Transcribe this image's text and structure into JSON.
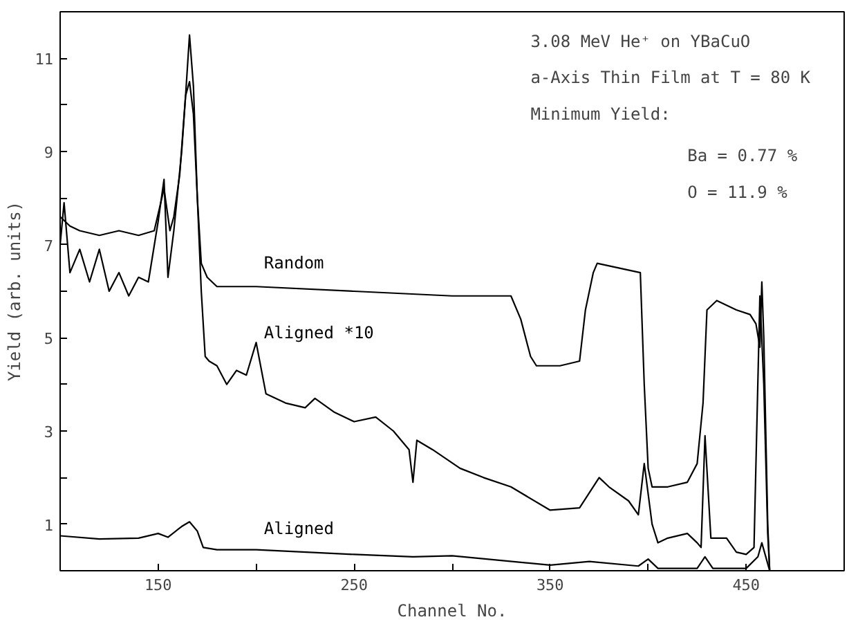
{
  "chart_data": {
    "type": "line",
    "xlabel": "Channel No.",
    "ylabel": "Yield (arb. units)",
    "annotations": [
      "3.08 MeV He⁺ on YBaCuO",
      "a-Axis Thin Film at T = 80 K",
      "Minimum Yield:",
      "Ba = 0.77 %",
      "O  = 11.9 %"
    ],
    "xlim": [
      100,
      500
    ],
    "ylim": [
      0,
      12
    ],
    "xticks": [
      {
        "value": 100,
        "label": null
      },
      150,
      {
        "value": 200,
        "label": null
      },
      250,
      {
        "value": 300,
        "label": null
      },
      350,
      {
        "value": 400,
        "label": null
      },
      450,
      {
        "value": 500,
        "label": null
      }
    ],
    "yticks": [
      1,
      {
        "value": 2,
        "label": null
      },
      3,
      {
        "value": 4,
        "label": null
      },
      5,
      {
        "value": 6,
        "label": null
      },
      7,
      {
        "value": 8,
        "label": null
      },
      9,
      {
        "value": 10,
        "label": null
      },
      11
    ],
    "grid": false,
    "marker": "none",
    "line_style": "solid",
    "series": [
      {
        "name": "Random",
        "color": "#000000",
        "x": [
          100,
          105,
          110,
          120,
          130,
          140,
          148,
          153,
          156,
          158,
          161,
          164,
          166,
          168,
          170,
          172,
          175,
          180,
          200,
          250,
          300,
          330,
          335,
          340,
          343,
          355,
          365,
          368,
          372,
          374,
          385,
          396,
          398,
          400,
          402,
          410,
          420,
          425,
          428,
          430,
          435,
          445,
          452,
          455,
          457,
          458,
          459,
          461,
          462,
          500
        ],
        "values": [
          7.6,
          7.4,
          7.3,
          7.2,
          7.3,
          7.2,
          7.3,
          8.2,
          7.3,
          7.6,
          8.5,
          10.2,
          11.5,
          10.4,
          8.0,
          6.6,
          6.3,
          6.1,
          6.1,
          6.0,
          5.9,
          5.9,
          5.4,
          4.6,
          4.4,
          4.4,
          4.5,
          5.6,
          6.4,
          6.6,
          6.5,
          6.4,
          4.0,
          2.2,
          1.8,
          1.8,
          1.9,
          2.3,
          3.6,
          5.6,
          5.8,
          5.6,
          5.5,
          5.3,
          4.8,
          6.2,
          5.0,
          1.0,
          0.0,
          0.0
        ]
      },
      {
        "name": "Aligned *10",
        "color": "#000000",
        "x": [
          100,
          102,
          105,
          110,
          115,
          120,
          125,
          130,
          135,
          140,
          145,
          150,
          153,
          155,
          158,
          162,
          164,
          166,
          168,
          170,
          172,
          174,
          176,
          180,
          185,
          190,
          195,
          200,
          205,
          215,
          225,
          230,
          240,
          250,
          261,
          270,
          278,
          280,
          282,
          290,
          304,
          316,
          330,
          350,
          365,
          375,
          380,
          390,
          395,
          398,
          402,
          405,
          410,
          420,
          425,
          427,
          429,
          432,
          440,
          445,
          450,
          454,
          457,
          459,
          461,
          462,
          500
        ],
        "values": [
          7.0,
          7.9,
          6.4,
          6.9,
          6.2,
          6.9,
          6.0,
          6.4,
          5.9,
          6.3,
          6.2,
          7.5,
          8.4,
          6.3,
          7.3,
          9.0,
          10.2,
          10.5,
          9.8,
          8.0,
          6.0,
          4.6,
          4.5,
          4.4,
          4.0,
          4.3,
          4.2,
          4.9,
          3.8,
          3.6,
          3.5,
          3.7,
          3.4,
          3.2,
          3.3,
          3.0,
          2.6,
          1.9,
          2.8,
          2.6,
          2.2,
          2.0,
          1.8,
          1.3,
          1.35,
          2.0,
          1.8,
          1.5,
          1.2,
          2.3,
          1.0,
          0.6,
          0.7,
          0.8,
          0.6,
          0.5,
          2.9,
          0.7,
          0.7,
          0.4,
          0.35,
          0.5,
          5.9,
          4.0,
          0.8,
          0.0,
          0.0
        ]
      },
      {
        "name": "Aligned",
        "color": "#000000",
        "x": [
          100,
          120,
          140,
          150,
          155,
          162,
          166,
          170,
          173,
          180,
          200,
          250,
          280,
          300,
          350,
          370,
          395,
          400,
          405,
          425,
          429,
          433,
          450,
          456,
          458,
          462,
          500
        ],
        "values": [
          0.75,
          0.68,
          0.7,
          0.8,
          0.72,
          0.95,
          1.05,
          0.85,
          0.5,
          0.45,
          0.45,
          0.35,
          0.3,
          0.32,
          0.12,
          0.2,
          0.1,
          0.25,
          0.05,
          0.05,
          0.3,
          0.05,
          0.05,
          0.3,
          0.6,
          0.0,
          0.0
        ]
      }
    ]
  }
}
